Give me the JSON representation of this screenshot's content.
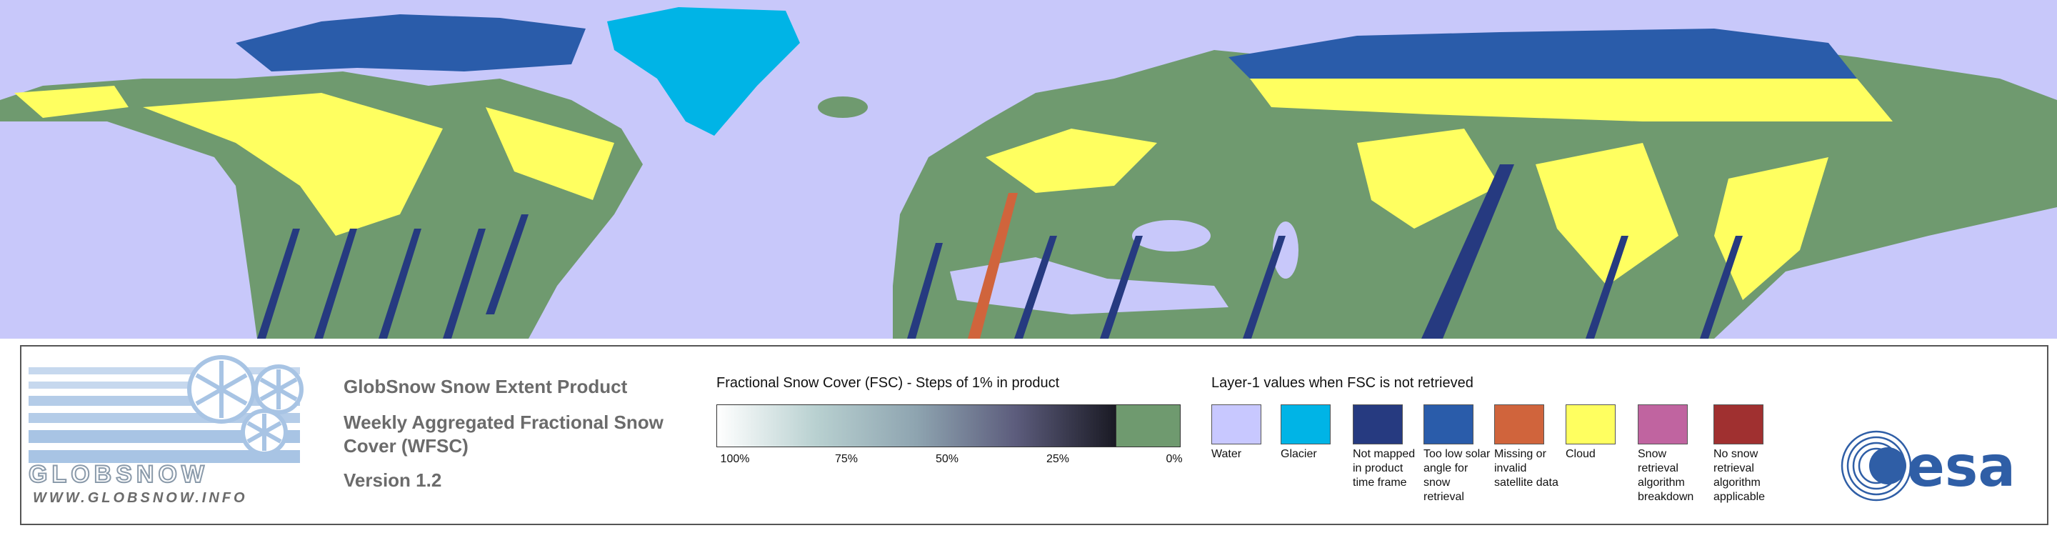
{
  "logo": {
    "name": "GLOBSNOW",
    "url": "WWW.GLOBSNOW.INFO"
  },
  "header": {
    "title": "GlobSnow Snow Extent Product",
    "subtitle": "Weekly Aggregated Fractional Snow Cover (WFSC)",
    "version": "Version 1.2"
  },
  "fsc_legend": {
    "title": "Fractional Snow Cover (FSC) - Steps of 1% in product",
    "ticks": [
      "100%",
      "75%",
      "50%",
      "25%",
      "0%"
    ]
  },
  "layer_legend": {
    "title": "Layer-1 values when FSC is not retrieved",
    "items": [
      {
        "label": "Water",
        "color": "#c8c8ff"
      },
      {
        "label": "Glacier",
        "color": "#00b4e6"
      },
      {
        "label": "Not mapped in product time frame",
        "color": "#263a80"
      },
      {
        "label": "Too low solar angle for snow retrieval",
        "color": "#2a5caa"
      },
      {
        "label": "Missing or invalid satellite data",
        "color": "#d0643c"
      },
      {
        "label": "Cloud",
        "color": "#ffff60"
      },
      {
        "label": "Snow retrieval algorithm breakdown",
        "color": "#c064a0"
      },
      {
        "label": "No snow retrieval algorithm applicable",
        "color": "#a03030"
      }
    ]
  },
  "esa_logo": "esa"
}
